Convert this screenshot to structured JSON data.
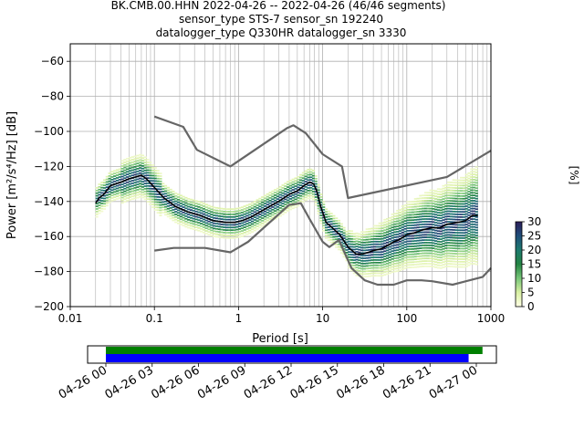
{
  "title_lines": [
    "BK.CMB.00.HHN   2022-04-26 -- 2022-04-26  (46/46 segments)",
    "sensor_type STS-7 sensor_sn 192240",
    "datalogger_type Q330HR datalogger_sn 3330"
  ],
  "chart_data": [
    {
      "type": "heatmap",
      "xlabel": "Period [s]",
      "ylabel": "Power [m²/s⁴/Hz] [dB]",
      "xscale": "log",
      "xlim": [
        0.01,
        1000
      ],
      "ylim": [
        -200,
        -50
      ],
      "x_ticks": [
        0.01,
        0.1,
        1,
        10,
        100,
        1000
      ],
      "x_tick_labels": [
        "0.01",
        "0.1",
        "1",
        "10",
        "100",
        "1000"
      ],
      "y_ticks": [
        -200,
        -180,
        -160,
        -140,
        -120,
        -100,
        -80,
        -60
      ],
      "y_tick_labels": [
        "−200",
        "−180",
        "−160",
        "−140",
        "−120",
        "−100",
        "−80",
        "−60"
      ],
      "grid": true,
      "colorbar": {
        "label": "[%]",
        "range": [
          0,
          30
        ],
        "ticks": [
          "0",
          "5",
          "10",
          "15",
          "20",
          "25",
          "30"
        ],
        "colors": [
          "#ffffe5",
          "#d9f0a3",
          "#78c679",
          "#238443",
          "#1d7a6e",
          "#1f4e7a",
          "#2c1e5a"
        ]
      },
      "colors": {
        "mode": "#000000",
        "noise_model": "#666666"
      },
      "series": [
        {
          "role": "mode",
          "x": [
            0.02,
            0.022,
            0.025,
            0.03,
            0.04,
            0.05,
            0.06,
            0.07,
            0.08,
            0.1,
            0.13,
            0.18,
            0.25,
            0.35,
            0.5,
            0.7,
            0.9,
            1.1,
            1.4,
            1.8,
            2.3,
            3,
            4,
            5,
            6,
            7,
            7.8,
            8.5,
            9.5,
            11,
            13,
            16,
            20,
            25,
            30,
            35,
            40,
            50,
            60,
            70,
            80,
            100,
            120,
            160,
            200,
            250,
            300,
            400,
            500,
            600,
            700
          ],
          "y": [
            -141,
            -138,
            -136,
            -131,
            -129,
            -127,
            -126,
            -125,
            -127,
            -132,
            -138,
            -143,
            -146,
            -148,
            -151,
            -152,
            -152,
            -151,
            -149,
            -146,
            -143,
            -140,
            -136,
            -134,
            -131,
            -129,
            -130,
            -134,
            -143,
            -152,
            -155,
            -159,
            -166,
            -170,
            -170,
            -169,
            -168,
            -167,
            -165,
            -163,
            -162,
            -159,
            -158,
            -156,
            -155,
            -155,
            -153,
            -152,
            -151,
            -148,
            -148
          ]
        },
        {
          "role": "noise-model-high",
          "x": [
            0.1,
            0.22,
            0.32,
            0.8,
            3.8,
            4.5,
            6.3,
            10,
            17,
            20,
            300,
            1000
          ],
          "y": [
            -91.5,
            -97.4,
            -110.5,
            -120,
            -98,
            -96.5,
            -101,
            -113,
            -120,
            -138,
            -126,
            -111
          ]
        },
        {
          "role": "noise-model-low",
          "x": [
            0.1,
            0.17,
            0.4,
            0.8,
            1.3,
            4,
            5.5,
            7,
            10,
            12,
            15.6,
            22,
            31.6,
            45,
            70,
            100,
            150,
            200,
            350,
            800,
            1000
          ],
          "y": [
            -168,
            -166.5,
            -166.5,
            -169,
            -163,
            -142,
            -141,
            -150,
            -163,
            -166,
            -162,
            -178,
            -185,
            -187.5,
            -187.5,
            -185,
            -185,
            -185.5,
            -187.5,
            -183,
            -178
          ]
        }
      ]
    },
    {
      "type": "bar",
      "role": "segment-coverage",
      "x_tick_labels": [
        "04-26 00",
        "04-26 03",
        "04-26 06",
        "04-26 09",
        "04-26 12",
        "04-26 15",
        "04-26 18",
        "04-26 21",
        "04-27 00"
      ],
      "series": [
        {
          "role": "data-available",
          "color": "#008000",
          "start_hour": 0,
          "end_hour": 24.4
        },
        {
          "role": "psd-segments",
          "color": "#0000ff",
          "start_hour": 0,
          "end_hour": 23.5
        }
      ]
    }
  ]
}
